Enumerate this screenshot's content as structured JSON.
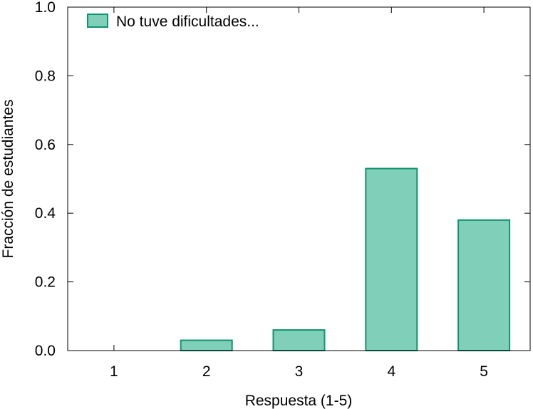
{
  "chart_data": {
    "type": "bar",
    "title": "",
    "xlabel": "Respuesta (1-5)",
    "ylabel": "Fracción de estudiantes",
    "categories": [
      "1",
      "2",
      "3",
      "4",
      "5"
    ],
    "series": [
      {
        "name": "No tuve dificultades...",
        "values": [
          0.0,
          0.03,
          0.06,
          0.53,
          0.38
        ]
      }
    ],
    "ylim": [
      0,
      1
    ],
    "yticks": [
      "0.0",
      "0.2",
      "0.4",
      "0.6",
      "0.8",
      "1.0"
    ],
    "yticks_values": [
      0.0,
      0.2,
      0.4,
      0.6,
      0.8,
      1.0
    ],
    "legend_position": "top-left",
    "grid": false,
    "colors": {
      "bar_fill": "#80cfb8",
      "bar_stroke": "#10946e"
    }
  }
}
